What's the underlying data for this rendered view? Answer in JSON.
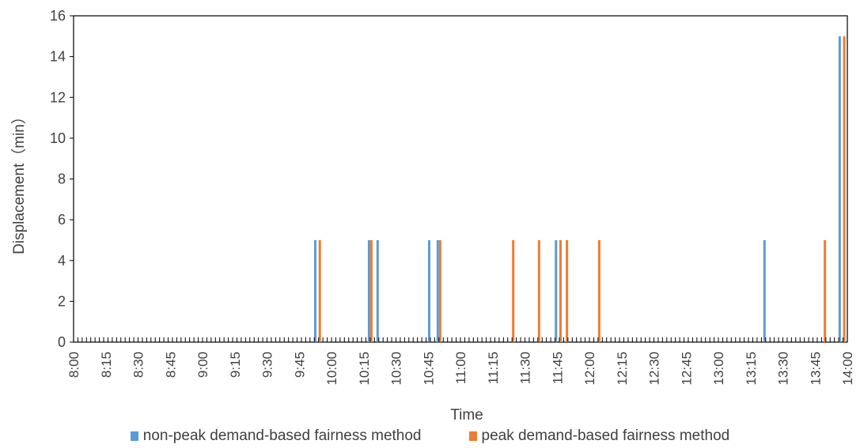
{
  "chart_data": {
    "type": "bar",
    "title": "",
    "xlabel": "Time",
    "ylabel": "Displacement（min）",
    "ylim": [
      0,
      16
    ],
    "yticks": [
      0,
      2,
      4,
      6,
      8,
      10,
      12,
      14,
      16
    ],
    "xrange_minutes": [
      480,
      840
    ],
    "xtick_labels": [
      "8:00",
      "8:15",
      "8:30",
      "8:45",
      "9:00",
      "9:15",
      "9:30",
      "9:45",
      "10:00",
      "10:15",
      "10:30",
      "10:45",
      "11:00",
      "11:15",
      "11:30",
      "11:45",
      "12:00",
      "12:15",
      "12:30",
      "12:45",
      "13:00",
      "13:15",
      "13:30",
      "13:45",
      "14:00"
    ],
    "grid": false,
    "legend_position": "bottom",
    "series": [
      {
        "name": "non-peak demand-based fairness method",
        "color": "#5B9BD5",
        "points": [
          {
            "time": "9:53",
            "value": 5
          },
          {
            "time": "10:18",
            "value": 5
          },
          {
            "time": "10:22",
            "value": 5
          },
          {
            "time": "10:46",
            "value": 5
          },
          {
            "time": "10:50",
            "value": 5
          },
          {
            "time": "11:45",
            "value": 5
          },
          {
            "time": "13:22",
            "value": 5
          },
          {
            "time": "13:57",
            "value": 15
          }
        ]
      },
      {
        "name": "peak demand-based fairness method",
        "color": "#ED7D31",
        "points": [
          {
            "time": "9:54",
            "value": 5
          },
          {
            "time": "10:18",
            "value": 5
          },
          {
            "time": "10:50",
            "value": 5
          },
          {
            "time": "11:24",
            "value": 5
          },
          {
            "time": "11:36",
            "value": 5
          },
          {
            "time": "11:46",
            "value": 5
          },
          {
            "time": "11:49",
            "value": 5
          },
          {
            "time": "12:04",
            "value": 5
          },
          {
            "time": "13:49",
            "value": 5
          },
          {
            "time": "13:58",
            "value": 15
          }
        ]
      }
    ]
  }
}
